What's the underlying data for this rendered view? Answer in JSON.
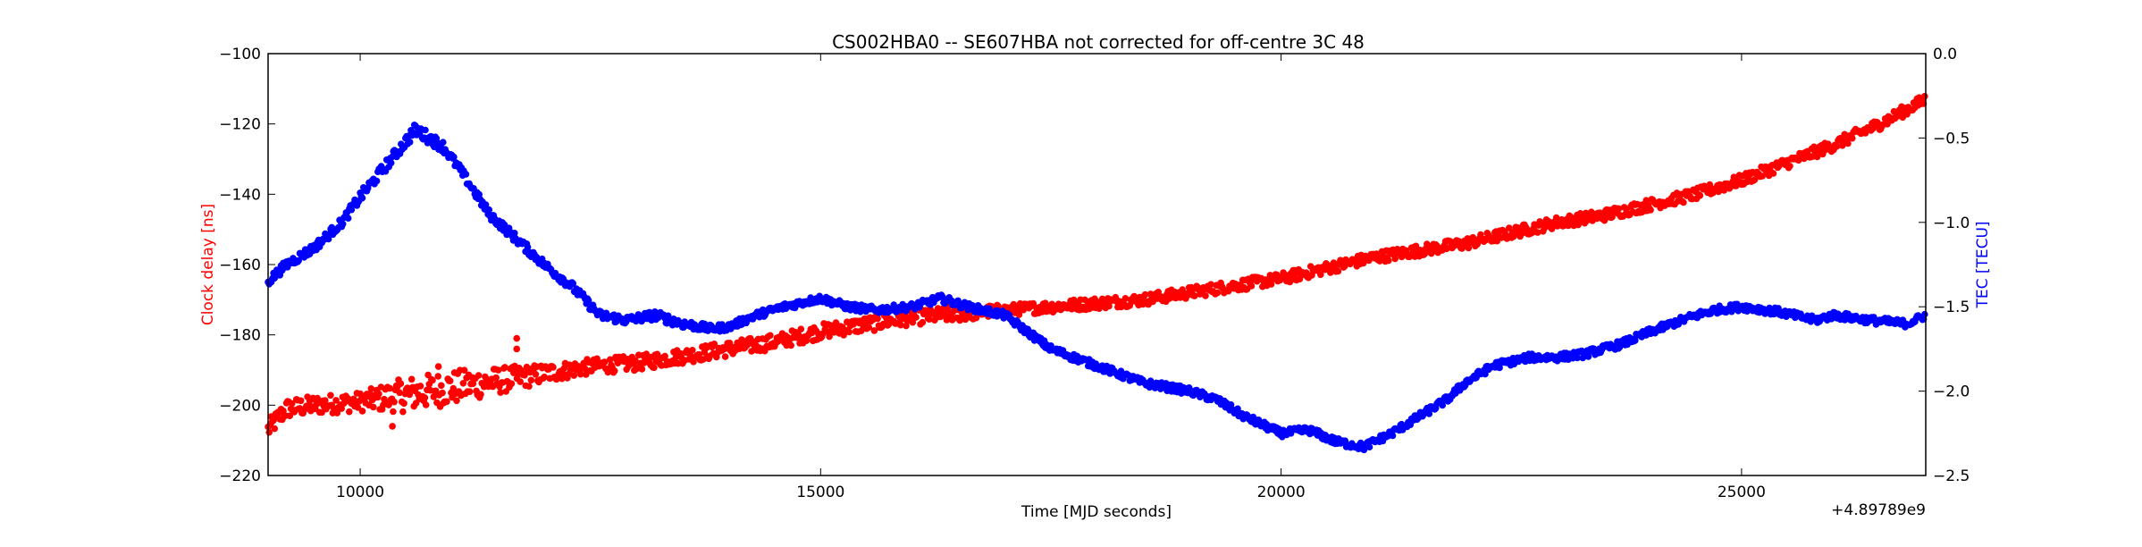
{
  "chart_data": {
    "type": "scatter",
    "title": "CS002HBA0 -- SE607HBA not corrected for off-centre 3C 48",
    "xlabel": "Time [MJD seconds]",
    "ylabel_left": "Clock delay [ns]",
    "ylabel_right": "TEC [TECU]",
    "x_offset_label": "+4.89789e9",
    "xlim": [
      9000,
      27000
    ],
    "ylim_left": [
      -220,
      -100
    ],
    "ylim_right": [
      -2.5,
      0.0
    ],
    "x_ticks": [
      10000,
      15000,
      20000,
      25000
    ],
    "x_tick_labels": [
      "10000",
      "15000",
      "20000",
      "25000"
    ],
    "left_ticks": [
      -100,
      -120,
      -140,
      -160,
      -180,
      -200,
      -220
    ],
    "left_tick_labels": [
      "−100",
      "−120",
      "−140",
      "−160",
      "−180",
      "−200",
      "−220"
    ],
    "right_ticks": [
      0.0,
      -0.5,
      -1.0,
      -1.5,
      -2.0,
      -2.5
    ],
    "right_tick_labels": [
      "0.0",
      "−0.5",
      "−1.0",
      "−1.5",
      "−2.0",
      "−2.5"
    ],
    "grid": false,
    "colors": {
      "left_axis": "#ff0000",
      "right_axis": "#0000ff",
      "frame": "#000000"
    },
    "series": [
      {
        "axis": "left",
        "color": "#ff0000",
        "x": [
          9000,
          9200,
          9500,
          10000,
          10500,
          11000,
          11500,
          12000,
          12500,
          13000,
          13500,
          14000,
          14500,
          15000,
          15500,
          16000,
          16500,
          17000,
          17500,
          18000,
          18500,
          19000,
          19500,
          20000,
          20500,
          21000,
          21500,
          22000,
          22500,
          23000,
          23500,
          24000,
          24500,
          25000,
          25500,
          26000,
          26500,
          27000
        ],
        "y": [
          -207,
          -201,
          -200,
          -199,
          -197,
          -195,
          -193,
          -191,
          -189,
          -188,
          -186,
          -184,
          -182,
          -179,
          -177,
          -175,
          -174,
          -173,
          -172,
          -171,
          -170,
          -168,
          -166,
          -164,
          -161,
          -158,
          -156,
          -154,
          -151,
          -148,
          -146,
          -143,
          -140,
          -136,
          -131,
          -126,
          -120,
          -113
        ],
        "spread": [
          5,
          5,
          5,
          5,
          9,
          9,
          7,
          5,
          4,
          4,
          4,
          4,
          4,
          4,
          4,
          4,
          4,
          3,
          3,
          3,
          3,
          3,
          3,
          3,
          3,
          3,
          3,
          3,
          3,
          3,
          3,
          3,
          3,
          3,
          3,
          3,
          3,
          3
        ]
      },
      {
        "axis": "right",
        "color": "#0000ff",
        "x": [
          9000,
          9200,
          9500,
          9800,
          10000,
          10300,
          10600,
          10900,
          11100,
          11400,
          11700,
          12000,
          12300,
          12600,
          12900,
          13200,
          13500,
          13800,
          14000,
          14300,
          14600,
          15000,
          15300,
          15600,
          16000,
          16300,
          16600,
          17000,
          17500,
          18000,
          18500,
          19000,
          19300,
          19600,
          20000,
          20300,
          20600,
          20900,
          21200,
          21500,
          21800,
          22000,
          22300,
          22700,
          23000,
          23300,
          23700,
          24000,
          24400,
          24700,
          25000,
          25400,
          25800,
          26000,
          26400,
          26800,
          27000
        ],
        "y": [
          -1.35,
          -1.25,
          -1.15,
          -1.0,
          -0.85,
          -0.65,
          -0.45,
          -0.55,
          -0.7,
          -0.95,
          -1.1,
          -1.25,
          -1.38,
          -1.55,
          -1.58,
          -1.55,
          -1.6,
          -1.63,
          -1.62,
          -1.55,
          -1.5,
          -1.45,
          -1.5,
          -1.52,
          -1.5,
          -1.45,
          -1.5,
          -1.55,
          -1.75,
          -1.85,
          -1.95,
          -2.0,
          -2.05,
          -2.15,
          -2.25,
          -2.23,
          -2.3,
          -2.33,
          -2.25,
          -2.15,
          -2.05,
          -1.95,
          -1.85,
          -1.8,
          -1.8,
          -1.78,
          -1.72,
          -1.65,
          -1.57,
          -1.52,
          -1.5,
          -1.53,
          -1.58,
          -1.55,
          -1.58,
          -1.6,
          -1.55
        ],
        "spread": [
          0.05,
          0.05,
          0.05,
          0.05,
          0.06,
          0.06,
          0.07,
          0.06,
          0.05,
          0.05,
          0.05,
          0.05,
          0.05,
          0.05,
          0.05,
          0.05,
          0.05,
          0.04,
          0.04,
          0.04,
          0.04,
          0.04,
          0.04,
          0.04,
          0.04,
          0.04,
          0.04,
          0.04,
          0.04,
          0.04,
          0.04,
          0.04,
          0.04,
          0.04,
          0.04,
          0.04,
          0.04,
          0.04,
          0.04,
          0.04,
          0.04,
          0.04,
          0.04,
          0.04,
          0.04,
          0.04,
          0.04,
          0.04,
          0.04,
          0.04,
          0.04,
          0.04,
          0.04,
          0.04,
          0.04,
          0.04,
          0.04
        ]
      }
    ],
    "outliers_left": [
      {
        "x": 11700,
        "y": -181
      },
      {
        "x": 11700,
        "y": -184
      },
      {
        "x": 10350,
        "y": -206
      },
      {
        "x": 10850,
        "y": -189
      }
    ]
  }
}
